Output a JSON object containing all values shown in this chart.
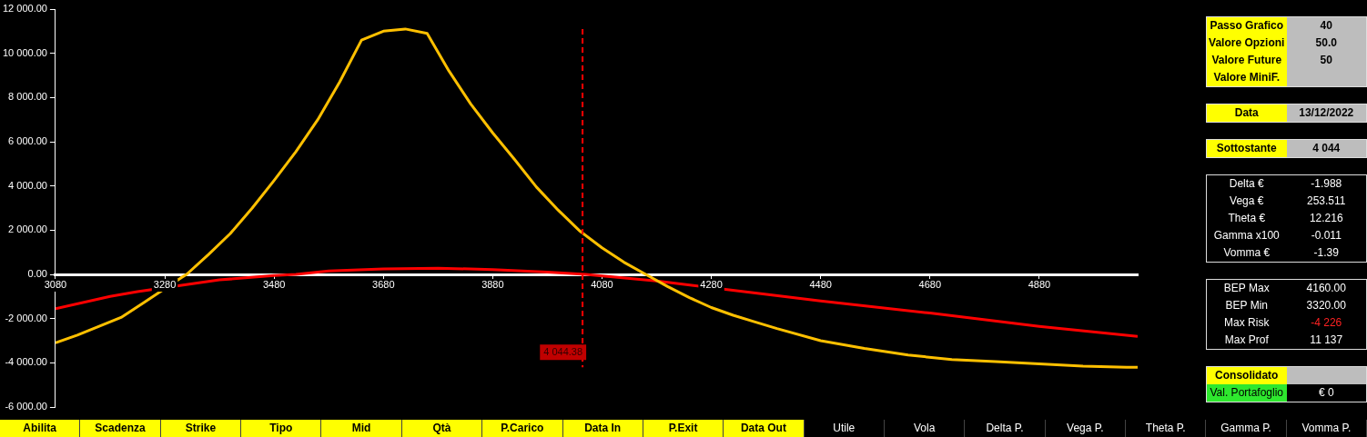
{
  "chart_data": [
    {
      "type": "line",
      "marker": "none",
      "line_style": "solid",
      "grid": false,
      "legend": false,
      "xlim": [
        3080,
        5060
      ],
      "xticks": [
        3080,
        3280,
        3480,
        3680,
        3880,
        4080,
        4280,
        4480,
        4680,
        4880
      ],
      "ylim": [
        -6000,
        12000
      ],
      "yticks": [
        {
          "value": -6000,
          "label": "-6 000.00"
        },
        {
          "value": -4000,
          "label": "-4 000.00"
        },
        {
          "value": -2000,
          "label": "-2 000.00"
        },
        {
          "value": 0,
          "label": "0.00"
        },
        {
          "value": 2000,
          "label": "2 000.00"
        },
        {
          "value": 4000,
          "label": "4 000.00"
        },
        {
          "value": 6000,
          "label": "6 000.00"
        },
        {
          "value": 8000,
          "label": "8 000.00"
        },
        {
          "value": 10000,
          "label": "10 000.00"
        },
        {
          "value": 12000,
          "label": "12 000.00"
        }
      ],
      "series": [
        {
          "color": "#ffc000",
          "x": [
            3080,
            3120,
            3160,
            3200,
            3240,
            3310,
            3320,
            3360,
            3400,
            3440,
            3480,
            3520,
            3560,
            3600,
            3640,
            3680,
            3720,
            3760,
            3800,
            3840,
            3880,
            3920,
            3960,
            4000,
            4040,
            4080,
            4120,
            4160,
            4200,
            4240,
            4280,
            4320,
            4360,
            4400,
            4480,
            4560,
            4640,
            4720,
            4800,
            4880,
            4960,
            5040,
            5060
          ],
          "values": [
            -3100,
            -2750,
            -2350,
            -1950,
            -1300,
            -150,
            0,
            900,
            1850,
            3000,
            4250,
            5550,
            7000,
            8700,
            10600,
            11000,
            11100,
            10900,
            9200,
            7700,
            6400,
            5200,
            3950,
            2900,
            1950,
            1200,
            550,
            0,
            -550,
            -1050,
            -1500,
            -1850,
            -2150,
            -2450,
            -3000,
            -3350,
            -3650,
            -3850,
            -3950,
            -4050,
            -4150,
            -4200,
            -4200
          ]
        },
        {
          "color": "#ff0000",
          "x": [
            3080,
            3180,
            3230,
            3380,
            3480,
            3520,
            3580,
            3680,
            3780,
            3880,
            3980,
            4050,
            4180,
            4340,
            4480,
            4680,
            4880,
            5060
          ],
          "values": [
            -1550,
            -1000,
            -780,
            -250,
            -50,
            0,
            150,
            250,
            280,
            220,
            100,
            0,
            -300,
            -780,
            -1200,
            -1750,
            -2350,
            -2800
          ]
        }
      ],
      "ref_lines": [
        {
          "axis": "x",
          "value": 4044.38,
          "label": "4 044.38",
          "color": "#ff0000",
          "line_style": "dashed"
        }
      ]
    },
    {
      "type": "other",
      "annotations": [
        "Passo Grafico",
        "40",
        "Valore Opzioni",
        "50.0",
        "Valore Future",
        "50",
        "Valore MiniF.",
        "Data",
        "13/12/2022",
        "Sottostante",
        "4 044",
        "Delta €",
        "-1.988",
        "Vega €",
        "253.511",
        "Theta €",
        "12.216",
        "Gamma x100",
        "-0.011",
        "Vomma €",
        "-1.39",
        "BEP Max",
        "4160.00",
        "BEP Min",
        "3320.00",
        "Max Risk",
        "-4 226",
        "Max Prof",
        "11 137",
        "Consolidato",
        "Val. Portafoglio",
        "€ 0"
      ]
    },
    {
      "type": "other",
      "annotations": [
        "Abilita",
        "Scadenza",
        "Strike",
        "Tipo",
        "Mid",
        "Qtà",
        "P.Carico",
        "Data In",
        "P.Exit",
        "Data Out",
        "Utile",
        "Vola",
        "Delta P.",
        "Vega P.",
        "Theta P.",
        "Gamma P.",
        "Vomma P."
      ]
    }
  ]
}
